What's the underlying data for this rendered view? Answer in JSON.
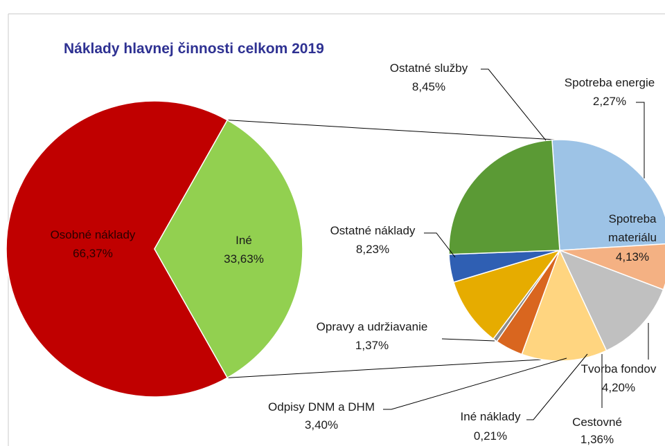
{
  "chart_data": {
    "type": "pie",
    "title": "Náklady hlavnej činnosti celkom 2019",
    "main": {
      "slices": [
        {
          "label": "Osobné náklady",
          "value_label": "66,37%",
          "value": 66.37,
          "color": "#c00000"
        },
        {
          "label": "Iné",
          "value_label": "33,63%",
          "value": 33.63,
          "color": "#92d050"
        }
      ]
    },
    "secondary": {
      "slices": [
        {
          "label": "Ostatné služby",
          "value_label": "8,45%",
          "value": 8.45,
          "color": "#9dc3e6"
        },
        {
          "label": "Spotreba energie",
          "value_label": "2,27%",
          "value": 2.27,
          "color": "#f4b183"
        },
        {
          "label": "Spotreba materiálu",
          "value_label": "4,13%",
          "value": 4.13,
          "color": "#c0c0c0"
        },
        {
          "label": "Tvorba fondov",
          "value_label": "4,20%",
          "value": 4.2,
          "color": "#ffd580"
        },
        {
          "label": "Cestovné",
          "value_label": "1,36%",
          "value": 1.36,
          "color": "#d9661f"
        },
        {
          "label": "Iné náklady",
          "value_label": "0,21%",
          "value": 0.21,
          "color": "#8c8c8c"
        },
        {
          "label": "Odpisy DNM a DHM",
          "value_label": "3,40%",
          "value": 3.4,
          "color": "#e6ac00"
        },
        {
          "label": "Opravy a udržiavanie",
          "value_label": "1,37%",
          "value": 1.37,
          "color": "#2f5fb3"
        },
        {
          "label": "Ostatné náklady",
          "value_label": "8,23%",
          "value": 8.23,
          "color": "#5b9a35"
        }
      ]
    }
  }
}
